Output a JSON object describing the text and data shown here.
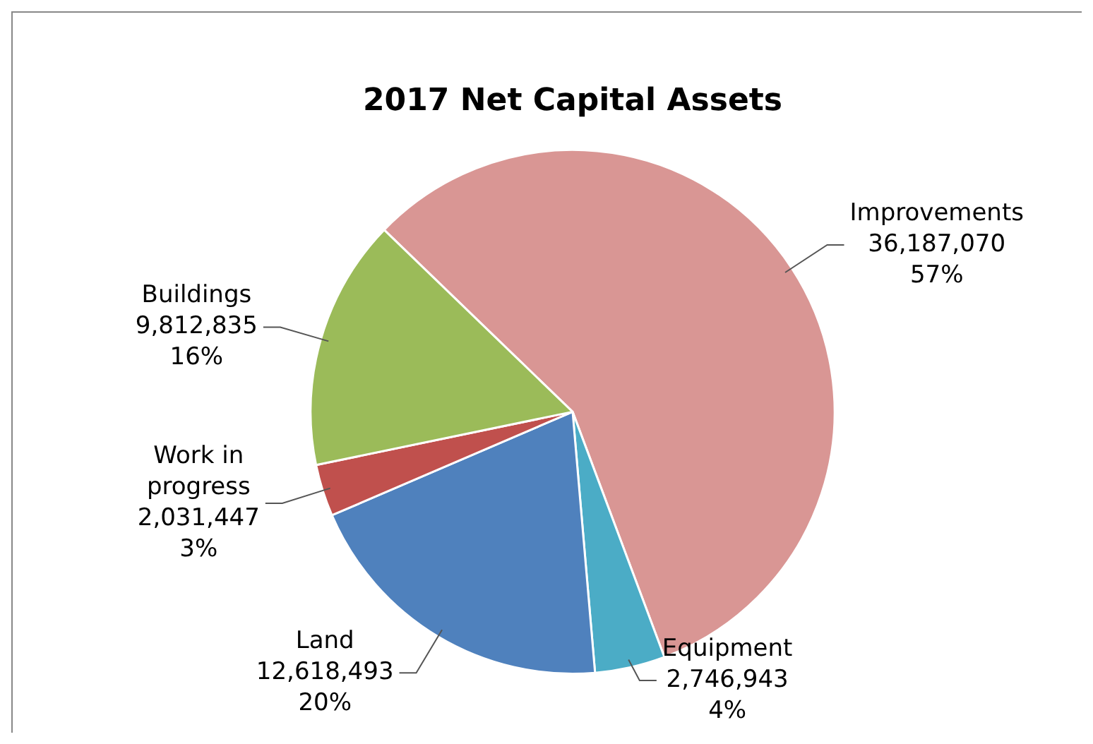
{
  "chart_data": {
    "type": "pie",
    "title": "2017 Net Capital Assets",
    "categories": [
      "Improvements",
      "Equipment",
      "Land",
      "Work in\nprogress",
      "Buildings"
    ],
    "values": [
      36187070,
      2746943,
      12618493,
      2031447,
      9812835
    ],
    "colors": [
      "#d99694",
      "#4bacc6",
      "#4f81bd",
      "#c0504d",
      "#9bbb59"
    ],
    "value_labels": [
      "36,187,070\n57%",
      "2,746,943\n4%",
      "12,618,493\n20%",
      "2,031,447\n3%",
      "9,812,835\n16%"
    ],
    "legend": false
  }
}
